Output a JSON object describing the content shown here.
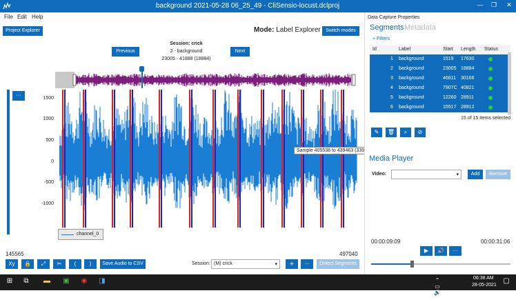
{
  "window": {
    "title": "background 2021-05-28 06_25_49 - CliSensio-locust.dclproj"
  },
  "menu": [
    "File",
    "Edit",
    "Help"
  ],
  "toolbar": {
    "project_explorer": "Project Explorer",
    "mode_prefix": "Mode:",
    "mode_value": "Label Explorer",
    "switch_modes": "Switch modes"
  },
  "session": {
    "title": "Session: crick",
    "segment": "2 - background",
    "range": "23005 - 41888 (18884)",
    "previous": "Previous",
    "next": "Next"
  },
  "plot": {
    "y_ticks": [
      "1500",
      "1000",
      "500",
      "0",
      "-500",
      "-1000"
    ],
    "tooltip": "Sample 405538 to 439463 (33926 samples)",
    "legend": "channel_0",
    "range_start": "145565",
    "range_end": "497040",
    "menu_btn": "···"
  },
  "bottom": {
    "xy": "Xy",
    "lock": "🔒",
    "expand": "⤢",
    "cut": "✂",
    "paren_open": "(",
    "paren_close": ")",
    "save_audio": "Save Audio to CSV",
    "session_label": "Session:",
    "session_value": "(M) crick",
    "plus": "+",
    "more": "···",
    "detect": "Detect Segments"
  },
  "panel": {
    "header": "Data Capture Properties",
    "tab_segments": "Segments",
    "tab_metadata": "Metadata",
    "filters": "+ Filters",
    "columns": [
      "Id",
      "Label",
      "Start",
      "Length",
      "Status"
    ],
    "rows": [
      {
        "id": "1",
        "label": "background",
        "start": "1519",
        "length": "17630"
      },
      {
        "id": "2",
        "label": "background",
        "start": "23005",
        "length": "18884"
      },
      {
        "id": "3",
        "label": "background",
        "start": "46611",
        "length": "30166"
      },
      {
        "id": "4",
        "label": "background",
        "start": "7907C",
        "length": "40821"
      },
      {
        "id": "5",
        "label": "background",
        "start": "12260",
        "length": "28911"
      },
      {
        "id": "6",
        "label": "background",
        "start": "15517",
        "length": "28912"
      }
    ],
    "selected": "15 of 15 items selected",
    "media_player": "Media Player",
    "video_label": "Video:",
    "add": "Add",
    "remove": "Remove",
    "time_current": "00:00:09:09",
    "time_total": "00:00:31:06",
    "seek_fraction": 0.29
  },
  "taskbar": {
    "time": "06:38 AM",
    "date": "28-05-2021"
  },
  "colors": {
    "accent": "#0f6cbd",
    "waveform": "#1a7fd4",
    "overview": "#7b1f7a",
    "marker_red": "#e02020",
    "marker_blue": "#2020c0"
  }
}
